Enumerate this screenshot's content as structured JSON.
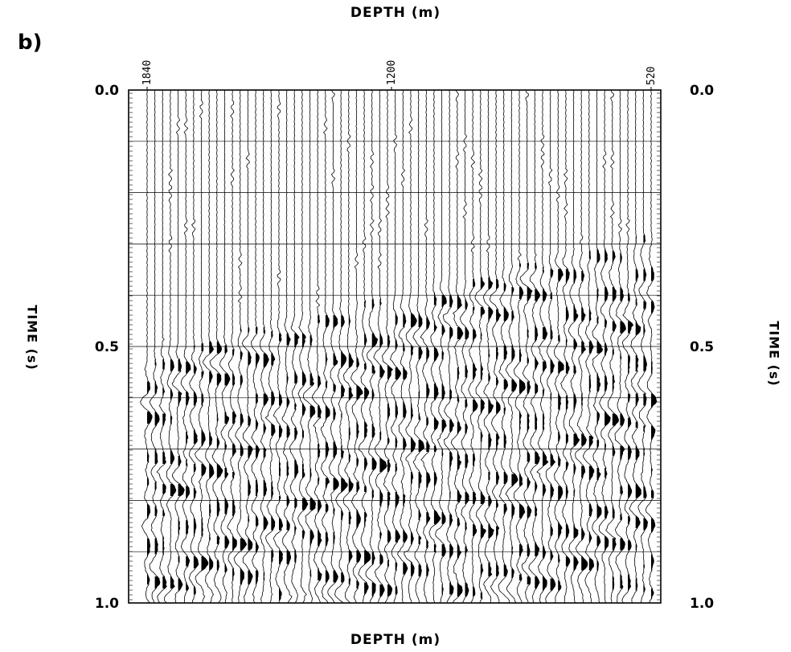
{
  "panel_label": "b)",
  "chart_data": {
    "type": "seismic-wiggle-trace",
    "x_axis": {
      "label": "DEPTH (m)",
      "ticks": [
        "1840",
        "1200",
        "520"
      ],
      "range": [
        1840,
        520
      ],
      "position": "top and bottom"
    },
    "y_axis": {
      "label": "TIME (s)",
      "ticks": [
        "0.0",
        "0.5",
        "1.0"
      ],
      "range": [
        0.0,
        1.0
      ],
      "inverted": true,
      "position": "left and right"
    },
    "grid": true,
    "grid_times": [
      0.1,
      0.2,
      0.3,
      0.4,
      0.5,
      0.6,
      0.7,
      0.8,
      0.9
    ],
    "trace_count": 66,
    "first_arrival": [
      {
        "depth": 1840,
        "time": 0.5
      },
      {
        "depth": 520,
        "time": 0.27
      }
    ],
    "wave_color": "#000000",
    "background": "#ffffff"
  }
}
